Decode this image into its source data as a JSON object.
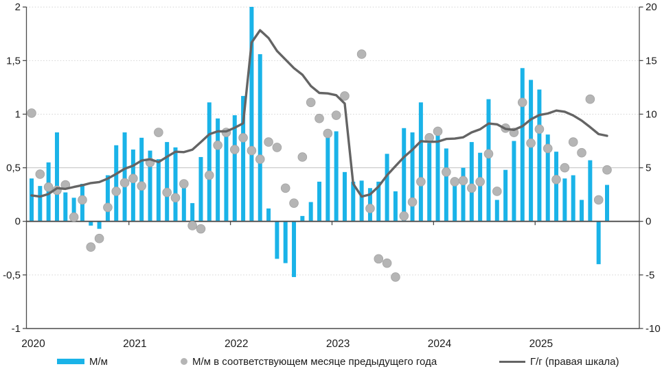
{
  "chart_data": {
    "type": "combo-bar-scatter-line",
    "title": "",
    "period_start": "2020-01",
    "period_end": "2025-09",
    "x_year_labels": [
      "2020",
      "2021",
      "2022",
      "2023",
      "2024",
      "2025"
    ],
    "left_axis": {
      "range": [
        -1,
        2
      ],
      "tick_values": [
        2,
        1.5,
        1,
        0.5,
        0,
        -0.5,
        -1
      ],
      "tick_labels": [
        "2",
        "1,5",
        "1",
        "0,5",
        "0",
        "-0,5",
        "-1"
      ]
    },
    "right_axis": {
      "range": [
        -10,
        20
      ],
      "tick_values": [
        20,
        15,
        10,
        5,
        0,
        -5,
        -10
      ],
      "tick_labels": [
        "20",
        "15",
        "10",
        "5",
        "0",
        "-5",
        "-10"
      ]
    },
    "series": [
      {
        "name": "М/м",
        "type": "bar",
        "axis": "left",
        "values": [
          0.4,
          0.33,
          0.55,
          0.83,
          0.27,
          0.22,
          0.35,
          -0.04,
          -0.07,
          0.43,
          0.71,
          0.83,
          0.67,
          0.78,
          0.66,
          0.58,
          0.74,
          0.69,
          0.31,
          0.17,
          0.6,
          1.11,
          0.96,
          0.82,
          0.99,
          1.17,
          7.61,
          1.56,
          0.12,
          -0.35,
          -0.39,
          -0.52,
          0.05,
          0.18,
          0.37,
          0.78,
          0.84,
          0.46,
          0.37,
          0.38,
          0.31,
          0.37,
          0.63,
          0.28,
          0.87,
          0.83,
          1.11,
          0.73,
          0.86,
          0.68,
          0.39,
          0.5,
          0.74,
          0.64,
          1.14,
          0.2,
          0.48,
          0.75,
          1.43,
          1.32,
          1.23,
          0.81,
          0.65,
          0.4,
          0.43,
          0.2,
          0.57,
          -0.4,
          0.34
        ]
      },
      {
        "name": "М/м в соответствующем месяце предыдущего года",
        "type": "scatter",
        "axis": "left",
        "values": [
          1.01,
          0.44,
          0.32,
          0.29,
          0.34,
          0.04,
          0.2,
          -0.24,
          -0.16,
          0.13,
          0.28,
          0.36,
          0.4,
          0.33,
          0.55,
          0.83,
          0.27,
          0.22,
          0.35,
          -0.04,
          -0.07,
          0.43,
          0.71,
          0.83,
          0.67,
          0.78,
          0.66,
          0.58,
          0.74,
          0.69,
          0.31,
          0.17,
          0.6,
          1.11,
          0.96,
          0.82,
          0.99,
          1.17,
          null,
          1.56,
          0.12,
          -0.35,
          -0.39,
          -0.52,
          0.05,
          0.18,
          0.37,
          0.78,
          0.84,
          0.46,
          0.37,
          0.38,
          0.31,
          0.37,
          0.63,
          0.28,
          0.87,
          0.83,
          1.11,
          0.73,
          0.86,
          0.68,
          0.39,
          0.5,
          0.74,
          0.64,
          1.14,
          0.2,
          0.48
        ]
      },
      {
        "name": "Г/г (правая шкала)",
        "type": "line",
        "axis": "right",
        "values": [
          2.42,
          2.31,
          2.55,
          3.1,
          3.03,
          3.21,
          3.37,
          3.57,
          3.67,
          3.99,
          4.42,
          4.91,
          5.19,
          5.67,
          5.79,
          5.53,
          6.02,
          6.5,
          6.46,
          6.68,
          7.4,
          8.13,
          8.4,
          8.39,
          8.73,
          9.15,
          16.69,
          17.83,
          17.1,
          15.9,
          15.1,
          14.3,
          13.68,
          12.63,
          11.98,
          11.94,
          11.77,
          10.99,
          3.51,
          2.31,
          2.51,
          3.25,
          4.3,
          5.15,
          6.0,
          6.69,
          7.48,
          7.42,
          7.44,
          7.69,
          7.72,
          7.84,
          8.3,
          8.59,
          9.13,
          9.05,
          8.63,
          8.54,
          8.88,
          9.52,
          9.92,
          10.06,
          10.34,
          10.23,
          9.88,
          9.4,
          8.79,
          8.14,
          7.98
        ]
      }
    ],
    "notes": {
      "clipped_bar": "2022-03 bar value 7.61 is clipped at top of left scale (2)"
    },
    "layout": {
      "grid": "horizontal",
      "legend_position": "bottom"
    },
    "colors": {
      "bar": "#1ab3e8",
      "dot": "#b5b5b5",
      "dot_edge": "#a3a3a3",
      "line": "#646464",
      "grid_dotted": "#d2d2d2",
      "grid_solid": "#c0c0c0",
      "axis": "#4a4a4a",
      "zero_line": "#555555",
      "text": "#1a1a1a"
    }
  }
}
